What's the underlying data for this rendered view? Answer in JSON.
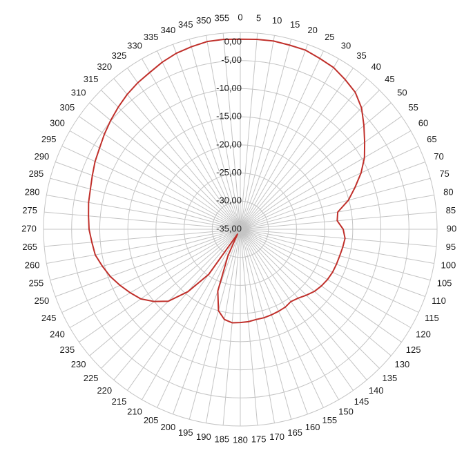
{
  "chart_data": {
    "type": "polar",
    "categories": [
      0,
      5,
      10,
      15,
      20,
      25,
      30,
      35,
      40,
      45,
      50,
      55,
      60,
      65,
      70,
      75,
      80,
      85,
      90,
      95,
      100,
      105,
      110,
      115,
      120,
      125,
      130,
      135,
      140,
      145,
      150,
      155,
      160,
      165,
      170,
      175,
      180,
      185,
      190,
      195,
      200,
      205,
      210,
      215,
      220,
      225,
      230,
      235,
      240,
      245,
      250,
      255,
      260,
      265,
      270,
      275,
      280,
      285,
      290,
      295,
      300,
      305,
      310,
      315,
      320,
      325,
      330,
      335,
      340,
      345,
      350,
      355
    ],
    "series": [
      {
        "color": "#c0302b",
        "values": [
          -1.2,
          -1.1,
          -1.0,
          -1.1,
          -1.1,
          -1.5,
          -1.8,
          -2.5,
          -3.2,
          -4.5,
          -6.3,
          -8.0,
          -9.5,
          -11.3,
          -13.3,
          -15.1,
          -17.4,
          -17.7,
          -16.7,
          -16.3,
          -16.5,
          -16.7,
          -16.8,
          -16.9,
          -17.1,
          -17.4,
          -17.8,
          -18.4,
          -19.0,
          -19.3,
          -19.0,
          -18.9,
          -18.8,
          -18.7,
          -18.7,
          -18.5,
          -18.4,
          -18.3,
          -18.7,
          -20.0,
          -23.3,
          -29.8,
          -34.0,
          -25.2,
          -20.5,
          -16.9,
          -15.0,
          -13.4,
          -12.4,
          -11.4,
          -10.4,
          -9.6,
          -8.8,
          -8.5,
          -8.1,
          -7.9,
          -7.6,
          -7.4,
          -7.0,
          -6.5,
          -6.1,
          -5.5,
          -4.9,
          -4.3,
          -3.7,
          -3.2,
          -2.8,
          -2.2,
          -1.7,
          -1.4,
          -1.1,
          -1.1
        ]
      }
    ],
    "rlim": [
      -35,
      0
    ],
    "rticks": [
      {
        "value": -35,
        "label": "-35,00"
      },
      {
        "value": -30,
        "label": "-30,00"
      },
      {
        "value": -25,
        "label": "-25,00"
      },
      {
        "value": -20,
        "label": "-20,00"
      },
      {
        "value": -15,
        "label": "-15,00"
      },
      {
        "value": -10,
        "label": "-10,00"
      },
      {
        "value": -5,
        "label": "-5,00"
      },
      {
        "value": 0,
        "label": "0,00"
      }
    ],
    "grid": true
  }
}
